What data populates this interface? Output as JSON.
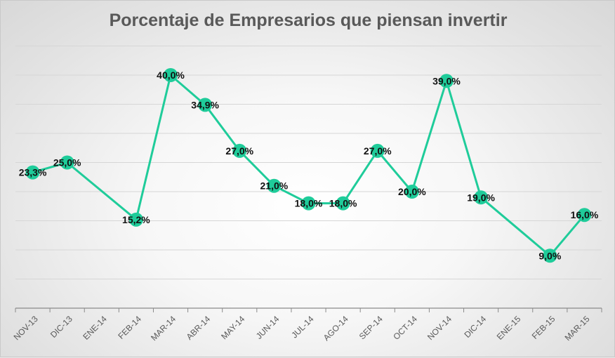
{
  "chart_data": {
    "type": "line",
    "title": "Porcentaje de Empresarios que piensan invertir",
    "xlabel": "",
    "ylabel": "",
    "ylim": [
      0,
      40
    ],
    "grid": true,
    "legend": "none",
    "categories": [
      "NOV-13",
      "DIC-13",
      "ENE-14",
      "FEB-14",
      "MAR-14",
      "ABR-14",
      "MAY-14",
      "JUN-14",
      "JUL-14",
      "AGO-14",
      "SEP-14",
      "OCT-14",
      "NOV-14",
      "DIC-14",
      "ENE-15",
      "FEB-15",
      "MAR-15"
    ],
    "series": [
      {
        "values": [
          23.3,
          25.0,
          null,
          15.2,
          40.0,
          34.9,
          27.0,
          21.0,
          18.0,
          18.0,
          27.0,
          20.0,
          39.0,
          19.0,
          null,
          9.0,
          16.0
        ],
        "labels": [
          "23,3%",
          "25,0%",
          "",
          "15,2%",
          "40,0%",
          "34,9%",
          "27,0%",
          "21,0%",
          "18,0%",
          "18,0%",
          "27,0%",
          "20,0%",
          "39,0%",
          "19,0%",
          "",
          "9,0%",
          "16,0%"
        ],
        "color": "#1fcc9a"
      }
    ]
  }
}
